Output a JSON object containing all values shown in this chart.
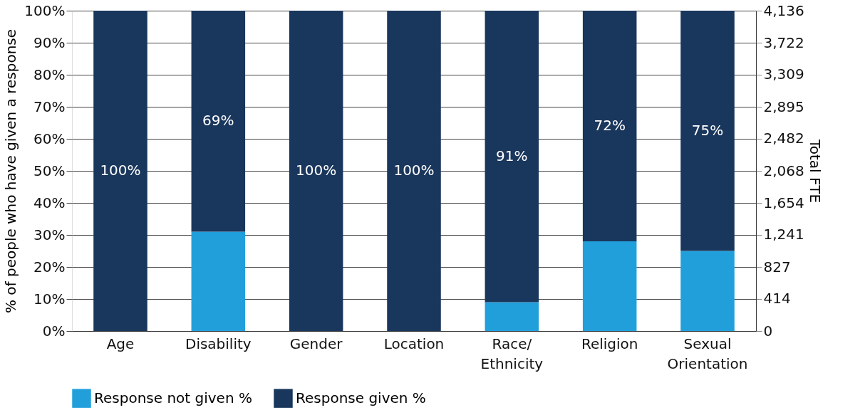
{
  "chart_data": {
    "type": "bar",
    "stacked": true,
    "categories": [
      "Age",
      "Disability",
      "Gender",
      "Location",
      "Race/\nEthnicity",
      "Religion",
      "Sexual\nOrientation"
    ],
    "series": [
      {
        "name": "Response not given %",
        "color": "#219fdb",
        "values": [
          0,
          31,
          0,
          0,
          9,
          28,
          25
        ]
      },
      {
        "name": "Response given %",
        "color": "#19365c",
        "values": [
          100,
          69,
          100,
          100,
          91,
          72,
          75
        ],
        "value_labels": [
          "100%",
          "69%",
          "100%",
          "100%",
          "91%",
          "72%",
          "75%"
        ]
      }
    ],
    "ylabel": "% of people who have given a response",
    "y2label": "Total FTE",
    "ylim": [
      0,
      100
    ],
    "yticks": [
      {
        "value": 0,
        "label": "0%"
      },
      {
        "value": 10,
        "label": "10%"
      },
      {
        "value": 20,
        "label": "20%"
      },
      {
        "value": 30,
        "label": "30%"
      },
      {
        "value": 40,
        "label": "40%"
      },
      {
        "value": 50,
        "label": "50%"
      },
      {
        "value": 60,
        "label": "60%"
      },
      {
        "value": 70,
        "label": "70%"
      },
      {
        "value": 80,
        "label": "80%"
      },
      {
        "value": 90,
        "label": "90%"
      },
      {
        "value": 100,
        "label": "100%"
      }
    ],
    "y2lim": [
      0,
      4136
    ],
    "y2ticks": [
      0,
      414,
      827,
      {
        "value": 1241,
        "label": "1,241"
      },
      {
        "value": 1654,
        "label": "1,654"
      },
      {
        "value": 2068,
        "label": "2,068"
      },
      {
        "value": 2482,
        "label": "2,482"
      },
      {
        "value": 2895,
        "label": "2,895"
      },
      {
        "value": 3309,
        "label": "3,309"
      },
      {
        "value": 3722,
        "label": "3,722"
      },
      {
        "value": 4136,
        "label": "4,136"
      }
    ],
    "grid": "y",
    "legend": "bottom"
  }
}
